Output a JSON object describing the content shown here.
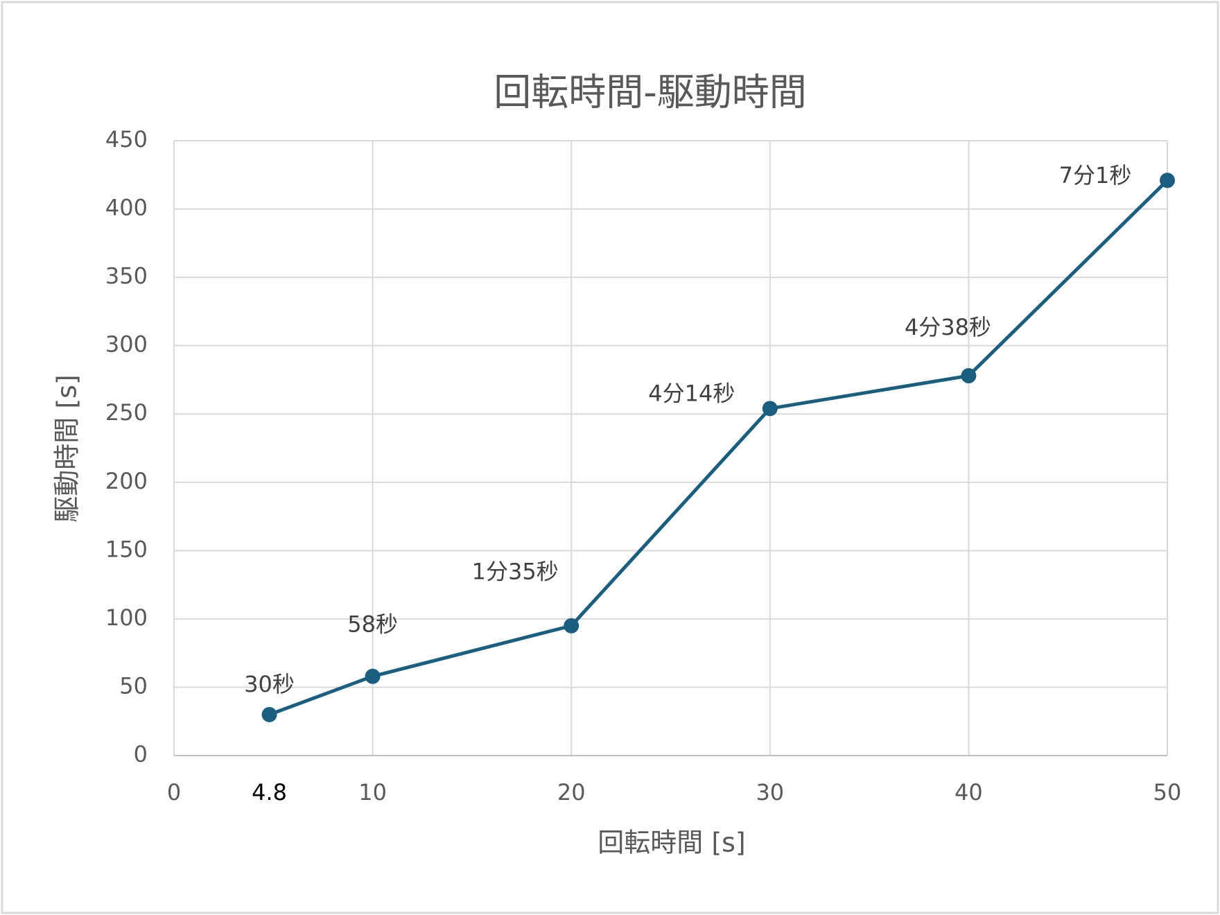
{
  "chart_data": {
    "type": "line",
    "title": "回転時間-駆動時間",
    "x_label": "回転時間 [s]",
    "y_label": "駆動時間 [s]",
    "x": [
      4.8,
      10,
      20,
      30,
      40,
      50
    ],
    "series": [
      {
        "name": "駆動時間",
        "color": "#1b5f80",
        "values": [
          30,
          58,
          95,
          254,
          278,
          421
        ],
        "value_labels": [
          "30秒",
          "58秒",
          "1分35秒",
          "4分14秒",
          "4分38秒",
          "7分1秒"
        ]
      }
    ],
    "xlim": [
      0,
      50
    ],
    "xticks": [
      0,
      10,
      20,
      30,
      40,
      50
    ],
    "xtick_extra": [
      4.8
    ],
    "ylim": [
      0,
      450
    ],
    "yticks": [
      0,
      50,
      100,
      150,
      200,
      250,
      300,
      350,
      400,
      450
    ],
    "grid": true
  }
}
